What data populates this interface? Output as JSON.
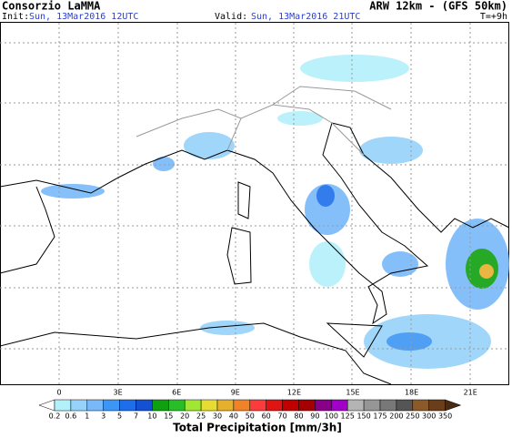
{
  "header": {
    "title": "Consorzio LaMMA",
    "model": "ARW 12km - (GFS 50km)",
    "init_label": "Init:",
    "init_value": "Sun, 13Mar2016 12UTC",
    "valid_label": "Valid:",
    "valid_value": "Sun, 13Mar2016 21UTC",
    "lead_time": "T=+9h"
  },
  "map": {
    "longitude_labels": [
      "0",
      "3E",
      "6E",
      "9E",
      "12E",
      "15E",
      "18E",
      "21E"
    ]
  },
  "colorbar": {
    "title": "Total Precipitation [mm/3h]",
    "labels": [
      "0.2",
      "0.6",
      "1",
      "3",
      "5",
      "7",
      "10",
      "15",
      "20",
      "25",
      "30",
      "40",
      "50",
      "60",
      "70",
      "80",
      "90",
      "100",
      "125",
      "150",
      "175",
      "200",
      "250",
      "300",
      "350"
    ],
    "colors": [
      "#ffffff",
      "#b4f0fa",
      "#96d2fa",
      "#78b9fa",
      "#3c96f5",
      "#1e6eeb",
      "#1450d2",
      "#0fa00f",
      "#28be28",
      "#a0e632",
      "#e6dc32",
      "#e6af2d",
      "#f08228",
      "#fa3c3c",
      "#e11414",
      "#c00000",
      "#a50000",
      "#870087",
      "#a000c8",
      "#b4b4b4",
      "#969696",
      "#787878",
      "#555555",
      "#8b5a2b",
      "#6b3e1b",
      "#4a2a10"
    ]
  }
}
